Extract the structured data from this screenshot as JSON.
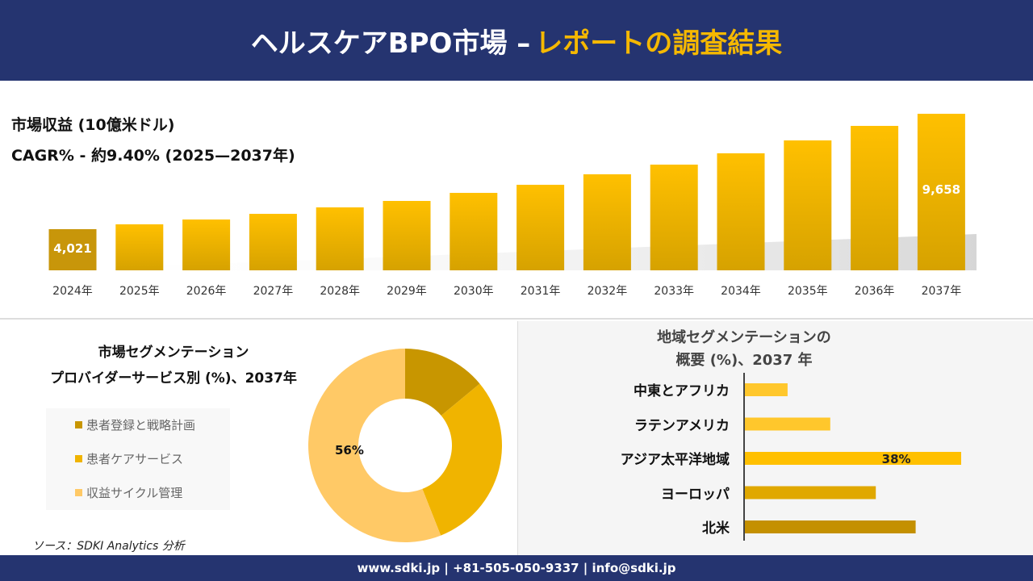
{
  "header": {
    "title_white": "ヘルスケアBPO市場 –",
    "title_yellow": "レポートの調査結果"
  },
  "colors": {
    "navy": "#253470",
    "gold": "#f5b800",
    "dark_gold": "#c89600",
    "light_gold": "#ffc966"
  },
  "chart_data": [
    {
      "type": "bar",
      "title": "市場収益 (10億米ドル)",
      "subtitle": "CAGR% - 約9.40% (2025—2037年)",
      "categories": [
        "2024年",
        "2025年",
        "2026年",
        "2027年",
        "2028年",
        "2029年",
        "2030年",
        "2031年",
        "2032年",
        "2033年",
        "2034年",
        "2035年",
        "2036年",
        "2037年"
      ],
      "values": [
        4021,
        4257,
        4493,
        4770,
        5085,
        5400,
        5794,
        6189,
        6701,
        7174,
        7726,
        8357,
        9066,
        9658
      ],
      "data_labels": {
        "0": "4,021",
        "13": "9,658"
      }
    },
    {
      "type": "pie",
      "title_line1": "市場セグメンテーション",
      "title_line2": "プロバイダーサービス別 (%)、2037年",
      "categories": [
        "患者登録と戦略計画",
        "患者ケアサービス",
        "収益サイクル管理"
      ],
      "values": [
        14,
        30,
        56
      ],
      "colors": [
        "#c89600",
        "#f0b400",
        "#ffc966"
      ],
      "data_label": "56%",
      "legend": "left"
    },
    {
      "type": "bar",
      "orientation": "horizontal",
      "title_line1": "地域セグメンテーションの",
      "title_line2": "概要 (%)、2037 年",
      "categories": [
        "中東とアフリカ",
        "ラテンアメリカ",
        "アジア太平洋地域",
        "ヨーロッパ",
        "北米"
      ],
      "values": [
        7.5,
        15,
        38,
        23,
        30
      ],
      "colors": [
        "#ffc72c",
        "#ffc72c",
        "#ffc000",
        "#e0a800",
        "#c49000"
      ],
      "data_label": "38%"
    }
  ],
  "source": "ソース：SDKI Analytics 分析",
  "footer": "www.sdki.jp | +81-505-050-9337 | info@sdki.jp"
}
